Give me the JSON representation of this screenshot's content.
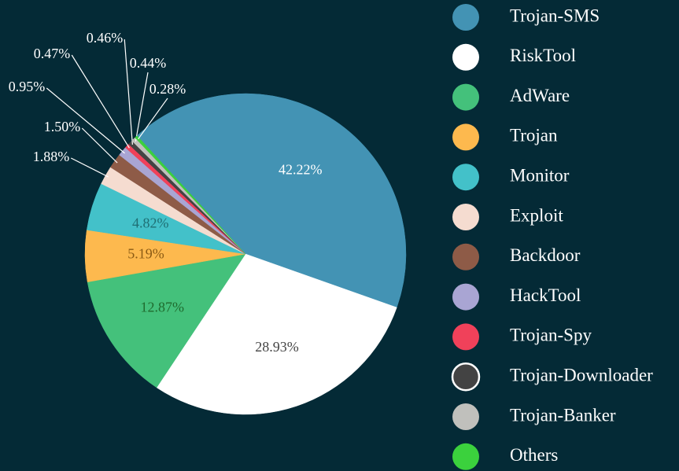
{
  "chart_data": {
    "type": "pie",
    "categories": [
      "Trojan-SMS",
      "RiskTool",
      "AdWare",
      "Trojan",
      "Monitor",
      "Exploit",
      "Backdoor",
      "HackTool",
      "Trojan-Spy",
      "Trojan-Downloader",
      "Trojan-Banker",
      "Others"
    ],
    "values": [
      42.22,
      28.93,
      12.87,
      5.19,
      4.82,
      1.88,
      1.5,
      0.95,
      0.47,
      0.46,
      0.44,
      0.28
    ],
    "value_labels": [
      "42.22%",
      "28.93%",
      "12.87%",
      "5.19%",
      "4.82%",
      "1.88%",
      "1.50%",
      "0.95%",
      "0.47%",
      "0.46%",
      "0.44%",
      "0.28%"
    ],
    "colors": [
      "#4393b4",
      "#ffffff",
      "#44c17b",
      "#fdb94e",
      "#43c1c9",
      "#f5dcd0",
      "#8e5b47",
      "#a9a5d3",
      "#f0415a",
      "#434343",
      "#c0c0bc",
      "#3bd13d"
    ],
    "legend": "right"
  }
}
